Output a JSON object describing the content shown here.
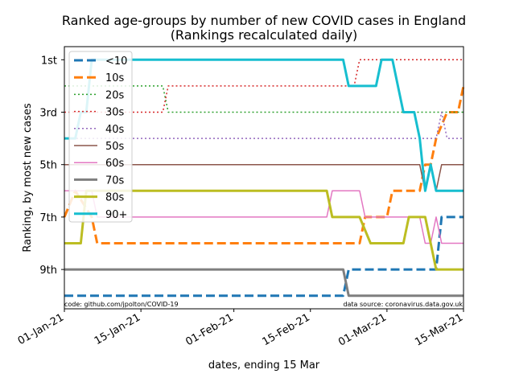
{
  "chart_data": {
    "type": "line",
    "title": [
      "Ranked age-groups by number of new COVID cases in England",
      "(Rankings recalculated daily)"
    ],
    "xlabel": "dates, ending 15 Mar",
    "ylabel": "Ranking, by most new cases",
    "x_range_days": [
      0,
      73
    ],
    "ylim": [
      0.5,
      10.5
    ],
    "y_inverted": true,
    "x_ticks": [
      {
        "day": 0,
        "label": "01-Jan-21"
      },
      {
        "day": 14,
        "label": "15-Jan-21"
      },
      {
        "day": 31,
        "label": "01-Feb-21"
      },
      {
        "day": 45,
        "label": "15-Feb-21"
      },
      {
        "day": 59,
        "label": "01-Mar-21"
      },
      {
        "day": 73,
        "label": "15-Mar-21"
      }
    ],
    "y_ticks": [
      {
        "rank": 1,
        "label": "1st"
      },
      {
        "rank": 3,
        "label": "3rd"
      },
      {
        "rank": 5,
        "label": "5th"
      },
      {
        "rank": 7,
        "label": "7th"
      },
      {
        "rank": 9,
        "label": "9th"
      }
    ],
    "legend_position": "upper-left",
    "footnote_left": "code: github.com/jpolton/COVID-19",
    "footnote_right": "data source: coronavirus.data.gov.uk",
    "series": [
      {
        "name": "<10",
        "color": "#1f77b4",
        "style": "dashed",
        "width": 3,
        "points": [
          [
            0,
            10
          ],
          [
            51,
            10
          ],
          [
            52,
            9
          ],
          [
            68,
            9
          ],
          [
            69,
            7
          ],
          [
            73,
            7
          ]
        ]
      },
      {
        "name": "10s",
        "color": "#ff7f0e",
        "style": "dashed",
        "width": 3,
        "points": [
          [
            0,
            7
          ],
          [
            2,
            6
          ],
          [
            5,
            7
          ],
          [
            6,
            8
          ],
          [
            54,
            8
          ],
          [
            55,
            7
          ],
          [
            59,
            7
          ],
          [
            60,
            6
          ],
          [
            65,
            6
          ],
          [
            66,
            5
          ],
          [
            67,
            5
          ],
          [
            68,
            4
          ],
          [
            70,
            3
          ],
          [
            72,
            3
          ],
          [
            73,
            2
          ]
        ]
      },
      {
        "name": "20s",
        "color": "#2ca02c",
        "style": "dotted",
        "width": 1.5,
        "points": [
          [
            0,
            2
          ],
          [
            18,
            2
          ],
          [
            19,
            3
          ],
          [
            72,
            3
          ],
          [
            73,
            3
          ]
        ]
      },
      {
        "name": "30s",
        "color": "#d62728",
        "style": "dotted",
        "width": 1.5,
        "points": [
          [
            0,
            3
          ],
          [
            18,
            3
          ],
          [
            19,
            2
          ],
          [
            53,
            2
          ],
          [
            54,
            1
          ],
          [
            73,
            1
          ]
        ]
      },
      {
        "name": "40s",
        "color": "#9467bd",
        "style": "dotted",
        "width": 1.5,
        "points": [
          [
            0,
            4
          ],
          [
            68,
            4
          ],
          [
            69,
            3
          ],
          [
            70,
            4
          ],
          [
            73,
            4
          ]
        ]
      },
      {
        "name": "50s",
        "color": "#8c564b",
        "style": "solid",
        "width": 1.5,
        "points": [
          [
            0,
            5
          ],
          [
            65,
            5
          ],
          [
            66,
            6
          ],
          [
            67,
            5
          ],
          [
            68,
            6
          ],
          [
            69,
            5
          ],
          [
            73,
            5
          ]
        ]
      },
      {
        "name": "60s",
        "color": "#e377c2",
        "style": "solid",
        "width": 1.5,
        "points": [
          [
            0,
            6
          ],
          [
            5,
            6
          ],
          [
            6,
            7
          ],
          [
            48,
            7
          ],
          [
            49,
            6
          ],
          [
            54,
            6
          ],
          [
            55,
            7
          ],
          [
            65,
            7
          ],
          [
            66,
            8
          ],
          [
            67,
            8
          ],
          [
            68,
            7
          ],
          [
            69,
            8
          ],
          [
            73,
            8
          ]
        ]
      },
      {
        "name": "70s",
        "color": "#7f7f7f",
        "style": "solid",
        "width": 3,
        "points": [
          [
            0,
            9
          ],
          [
            51,
            9
          ],
          [
            52,
            10
          ],
          [
            73,
            10
          ]
        ]
      },
      {
        "name": "80s",
        "color": "#bcbd22",
        "style": "solid",
        "width": 3,
        "points": [
          [
            0,
            8
          ],
          [
            3,
            8
          ],
          [
            4,
            6
          ],
          [
            48,
            6
          ],
          [
            49,
            7
          ],
          [
            54,
            7
          ],
          [
            56,
            8
          ],
          [
            62,
            8
          ],
          [
            63,
            7
          ],
          [
            66,
            7
          ],
          [
            67,
            8
          ],
          [
            68,
            9
          ],
          [
            73,
            9
          ]
        ]
      },
      {
        "name": "90+",
        "color": "#17becf",
        "style": "solid",
        "width": 3,
        "points": [
          [
            0,
            4
          ],
          [
            2,
            4
          ],
          [
            3,
            3
          ],
          [
            4,
            3
          ],
          [
            5,
            1
          ],
          [
            51,
            1
          ],
          [
            52,
            2
          ],
          [
            57,
            2
          ],
          [
            58,
            1
          ],
          [
            60,
            1
          ],
          [
            62,
            3
          ],
          [
            64,
            3
          ],
          [
            65,
            4
          ],
          [
            66,
            6
          ],
          [
            67,
            5
          ],
          [
            68,
            6
          ],
          [
            73,
            6
          ]
        ]
      }
    ]
  }
}
